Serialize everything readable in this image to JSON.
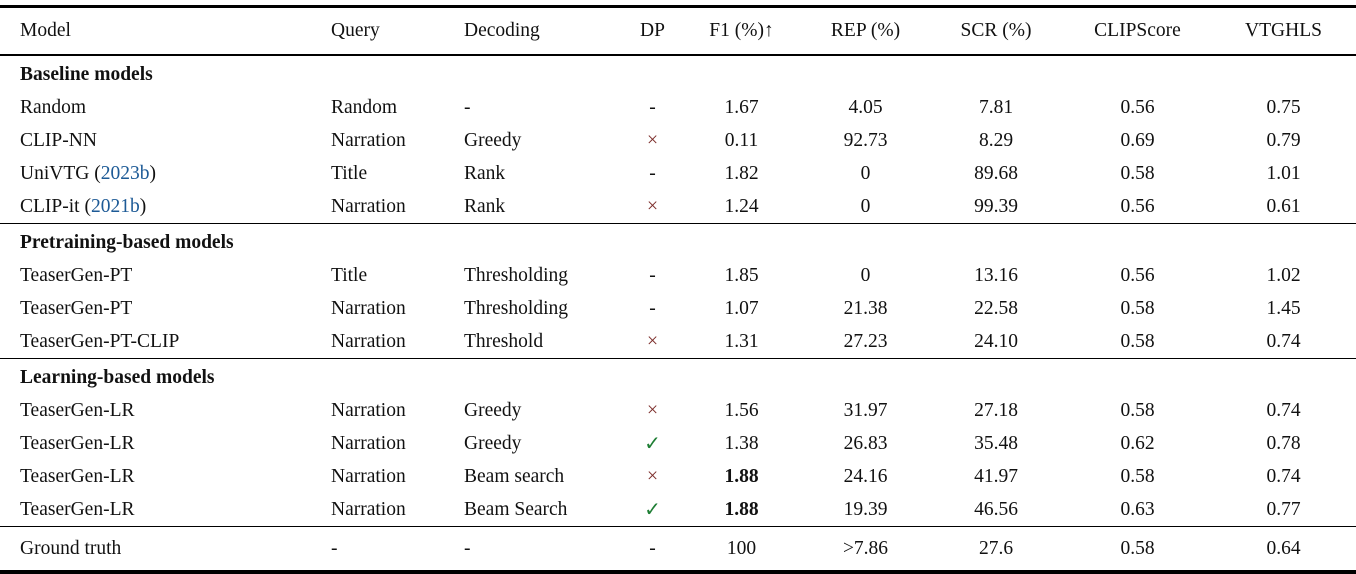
{
  "table": {
    "columns": [
      {
        "label": "Model",
        "align": "left"
      },
      {
        "label": "Query",
        "align": "left"
      },
      {
        "label": "Decoding",
        "align": "left"
      },
      {
        "label": "DP",
        "align": "center"
      },
      {
        "label": "F1 (%)↑",
        "align": "center"
      },
      {
        "label": "REP (%)",
        "align": "center"
      },
      {
        "label": "SCR (%)",
        "align": "center"
      },
      {
        "label": "CLIPScore",
        "align": "center"
      },
      {
        "label": "VTGHLS",
        "align": "center"
      }
    ],
    "sections": [
      {
        "header": "Baseline models",
        "rows": [
          {
            "model": "Random",
            "cite": null,
            "query": "Random",
            "decoding": "-",
            "dp": "-",
            "f1": "1.67",
            "f1_bold": false,
            "rep": "4.05",
            "scr": "7.81",
            "clipscore": "0.56",
            "vtghls": "0.75"
          },
          {
            "model": "CLIP-NN",
            "cite": null,
            "query": "Narration",
            "decoding": "Greedy",
            "dp": "x",
            "f1": "0.11",
            "f1_bold": false,
            "rep": "92.73",
            "scr": "8.29",
            "clipscore": "0.69",
            "vtghls": "0.79"
          },
          {
            "model": "UniVTG",
            "cite": "2023b",
            "query": "Title",
            "decoding": "Rank",
            "dp": "-",
            "f1": "1.82",
            "f1_bold": false,
            "rep": "0",
            "scr": "89.68",
            "clipscore": "0.58",
            "vtghls": "1.01"
          },
          {
            "model": "CLIP-it",
            "cite": "2021b",
            "query": "Narration",
            "decoding": "Rank",
            "dp": "x",
            "f1": "1.24",
            "f1_bold": false,
            "rep": "0",
            "scr": "99.39",
            "clipscore": "0.56",
            "vtghls": "0.61"
          }
        ]
      },
      {
        "header": "Pretraining-based models",
        "rows": [
          {
            "model": "TeaserGen-PT",
            "cite": null,
            "query": "Title",
            "decoding": "Thresholding",
            "dp": "-",
            "f1": "1.85",
            "f1_bold": false,
            "rep": "0",
            "scr": "13.16",
            "clipscore": "0.56",
            "vtghls": "1.02"
          },
          {
            "model": "TeaserGen-PT",
            "cite": null,
            "query": "Narration",
            "decoding": "Thresholding",
            "dp": "-",
            "f1": "1.07",
            "f1_bold": false,
            "rep": "21.38",
            "scr": "22.58",
            "clipscore": "0.58",
            "vtghls": "1.45"
          },
          {
            "model": "TeaserGen-PT-CLIP",
            "cite": null,
            "query": "Narration",
            "decoding": "Threshold",
            "dp": "x",
            "f1": "1.31",
            "f1_bold": false,
            "rep": "27.23",
            "scr": "24.10",
            "clipscore": "0.58",
            "vtghls": "0.74"
          }
        ]
      },
      {
        "header": "Learning-based models",
        "rows": [
          {
            "model": "TeaserGen-LR",
            "cite": null,
            "query": "Narration",
            "decoding": "Greedy",
            "dp": "x",
            "f1": "1.56",
            "f1_bold": false,
            "rep": "31.97",
            "scr": "27.18",
            "clipscore": "0.58",
            "vtghls": "0.74"
          },
          {
            "model": "TeaserGen-LR",
            "cite": null,
            "query": "Narration",
            "decoding": "Greedy",
            "dp": "check",
            "f1": "1.38",
            "f1_bold": false,
            "rep": "26.83",
            "scr": "35.48",
            "clipscore": "0.62",
            "vtghls": "0.78"
          },
          {
            "model": "TeaserGen-LR",
            "cite": null,
            "query": "Narration",
            "decoding": "Beam search",
            "dp": "x",
            "f1": "1.88",
            "f1_bold": true,
            "rep": "24.16",
            "scr": "41.97",
            "clipscore": "0.58",
            "vtghls": "0.74"
          },
          {
            "model": "TeaserGen-LR",
            "cite": null,
            "query": "Narration",
            "decoding": "Beam Search",
            "dp": "check",
            "f1": "1.88",
            "f1_bold": true,
            "rep": "19.39",
            "scr": "46.56",
            "clipscore": "0.63",
            "vtghls": "0.77"
          }
        ]
      }
    ],
    "footer_row": {
      "model": "Ground truth",
      "cite": null,
      "query": "-",
      "decoding": "-",
      "dp": "-",
      "f1": "100",
      "f1_bold": false,
      "rep": ">7.86",
      "scr": "27.6",
      "clipscore": "0.58",
      "vtghls": "0.64"
    },
    "symbols": {
      "x_mark": "×",
      "check_mark": "✓",
      "dash": "-"
    },
    "colors": {
      "cite_blue": "#1d5a96",
      "x_red": "#7b2b28",
      "check_green": "#1e7e34",
      "text": "#111111",
      "rule": "#000000"
    }
  }
}
